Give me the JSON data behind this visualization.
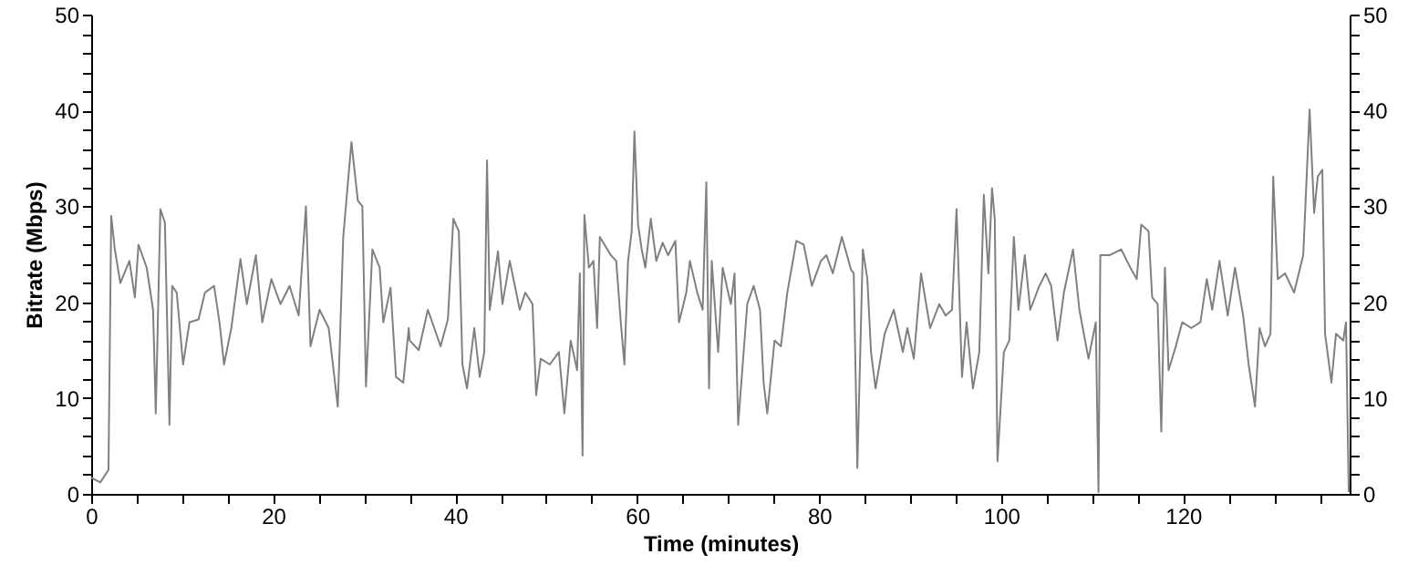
{
  "chart_data": {
    "type": "line",
    "xlabel": "Time (minutes)",
    "ylabel": "Bitrate (Mbps)",
    "xlim": [
      0,
      138.3
    ],
    "ylim": [
      0,
      50
    ],
    "y2lim": [
      0,
      50
    ],
    "xticks": [
      0,
      {
        "value": 5,
        "label": null
      },
      {
        "value": 10,
        "label": null
      },
      {
        "value": 15,
        "label": null
      },
      20,
      {
        "value": 25,
        "label": null
      },
      {
        "value": 30,
        "label": null
      },
      {
        "value": 35,
        "label": null
      },
      40,
      {
        "value": 45,
        "label": null
      },
      {
        "value": 50,
        "label": null
      },
      {
        "value": 55,
        "label": null
      },
      60,
      {
        "value": 65,
        "label": null
      },
      {
        "value": 70,
        "label": null
      },
      {
        "value": 75,
        "label": null
      },
      80,
      {
        "value": 85,
        "label": null
      },
      {
        "value": 90,
        "label": null
      },
      {
        "value": 95,
        "label": null
      },
      100,
      {
        "value": 105,
        "label": null
      },
      {
        "value": 110,
        "label": null
      },
      {
        "value": 115,
        "label": null
      },
      120,
      {
        "value": 125,
        "label": null
      },
      {
        "value": 130,
        "label": null
      },
      {
        "value": 135,
        "label": null
      }
    ],
    "yticks": [
      0,
      {
        "value": 2,
        "label": null
      },
      {
        "value": 4,
        "label": null
      },
      {
        "value": 6,
        "label": null
      },
      {
        "value": 8,
        "label": null
      },
      10,
      {
        "value": 12,
        "label": null
      },
      {
        "value": 14,
        "label": null
      },
      {
        "value": 16,
        "label": null
      },
      {
        "value": 18,
        "label": null
      },
      20,
      {
        "value": 22,
        "label": null
      },
      {
        "value": 24,
        "label": null
      },
      {
        "value": 26,
        "label": null
      },
      {
        "value": 28,
        "label": null
      },
      30,
      {
        "value": 32,
        "label": null
      },
      {
        "value": 34,
        "label": null
      },
      {
        "value": 36,
        "label": null
      },
      {
        "value": 38,
        "label": null
      },
      40,
      {
        "value": 42,
        "label": null
      },
      {
        "value": 44,
        "label": null
      },
      {
        "value": 46,
        "label": null
      },
      {
        "value": 48,
        "label": null
      },
      50
    ],
    "y2ticks": [
      0,
      {
        "value": 2,
        "label": null
      },
      {
        "value": 4,
        "label": null
      },
      {
        "value": 6,
        "label": null
      },
      {
        "value": 8,
        "label": null
      },
      10,
      {
        "value": 12,
        "label": null
      },
      {
        "value": 14,
        "label": null
      },
      {
        "value": 16,
        "label": null
      },
      {
        "value": 18,
        "label": null
      },
      20,
      {
        "value": 22,
        "label": null
      },
      {
        "value": 24,
        "label": null
      },
      {
        "value": 26,
        "label": null
      },
      {
        "value": 28,
        "label": null
      },
      30,
      {
        "value": 32,
        "label": null
      },
      {
        "value": 34,
        "label": null
      },
      {
        "value": 36,
        "label": null
      },
      {
        "value": 38,
        "label": null
      },
      40,
      {
        "value": 42,
        "label": null
      },
      {
        "value": 44,
        "label": null
      },
      {
        "value": 46,
        "label": null
      },
      {
        "value": 48,
        "label": null
      },
      50
    ],
    "marker": "none",
    "line_style": "solid",
    "series": [
      {
        "color": "#808080",
        "x": [
          0,
          1.0,
          1.9,
          2.2,
          2.6,
          3.2,
          4.2,
          4.8,
          5.2,
          6.1,
          6.8,
          7.1,
          7.6,
          8.1,
          8.6,
          8.9,
          9.4,
          10.1,
          10.8,
          11.8,
          12.5,
          13.5,
          14.1,
          14.6,
          15.4,
          16.4,
          17.1,
          18.1,
          18.8,
          19.8,
          20.8,
          21.8,
          22.8,
          23.6,
          24.1,
          25.1,
          26.1,
          27.1,
          27.7,
          28.6,
          29.3,
          29.8,
          30.2,
          30.9,
          31.7,
          32.1,
          32.9,
          33.5,
          34.3,
          34.9,
          35.0,
          36.0,
          37.0,
          38.4,
          39.2,
          39.8,
          40.4,
          40.8,
          41.3,
          42.1,
          42.7,
          43.2,
          43.5,
          43.8,
          44.7,
          45.2,
          46.0,
          47.1,
          47.7,
          48.5,
          48.9,
          49.4,
          50.4,
          51.4,
          52.0,
          52.7,
          53.4,
          53.7,
          54.0,
          54.2,
          54.7,
          55.2,
          55.6,
          55.9,
          57.1,
          57.7,
          58.2,
          58.6,
          59.0,
          59.4,
          59.7,
          60.1,
          60.5,
          60.9,
          61.5,
          62.1,
          62.8,
          63.4,
          64.2,
          64.6,
          65.4,
          65.8,
          66.6,
          67.2,
          67.6,
          67.9,
          68.2,
          68.9,
          69.4,
          70.0,
          70.3,
          70.7,
          71.1,
          72.1,
          72.8,
          73.5,
          73.9,
          74.3,
          75.1,
          75.8,
          76.5,
          77.5,
          78.3,
          79.2,
          80.2,
          80.8,
          81.5,
          82.5,
          83.5,
          83.8,
          84.2,
          84.8,
          85.3,
          85.7,
          86.2,
          87.2,
          88.2,
          89.2,
          89.7,
          90.4,
          91.2,
          92.2,
          93.2,
          93.9,
          94.6,
          95.1,
          95.7,
          96.2,
          96.9,
          97.6,
          98.1,
          98.6,
          99.0,
          99.3,
          99.6,
          100.3,
          100.9,
          101.4,
          101.9,
          102.6,
          103.2,
          104.2,
          104.9,
          105.5,
          106.2,
          106.9,
          107.9,
          108.6,
          109.6,
          110.4,
          110.7,
          110.9,
          111.9,
          113.2,
          114.2,
          114.9,
          115.4,
          116.2,
          116.6,
          117.2,
          117.6,
          118.0,
          118.4,
          119.2,
          119.9,
          120.9,
          121.9,
          122.6,
          123.2,
          124.0,
          124.9,
          125.7,
          126.6,
          127.2,
          127.9,
          128.4,
          129.0,
          129.6,
          129.9,
          130.4,
          131.2,
          132.2,
          133.2,
          133.9,
          134.4,
          134.8,
          135.3,
          135.6,
          136.3,
          136.8,
          137.6,
          137.9,
          138.2
        ],
        "values": [
          1.7,
          1.2,
          2.5,
          29,
          25.5,
          22,
          24.3,
          20.5,
          26,
          23.6,
          19.2,
          8.4,
          29.7,
          28.3,
          7.2,
          21.7,
          21,
          13.5,
          17.9,
          18.2,
          21,
          21.7,
          17.9,
          13.5,
          17.3,
          24.5,
          19.8,
          24.9,
          17.9,
          22.4,
          19.8,
          21.7,
          18.6,
          30,
          15.4,
          19.2,
          17.3,
          9.1,
          26.8,
          36.7,
          30.6,
          30,
          11.2,
          25.5,
          23.6,
          17.9,
          21.5,
          12.2,
          11.6,
          17.3,
          16,
          15,
          19.2,
          15.4,
          18.2,
          28.7,
          27.4,
          13.5,
          11,
          17.3,
          12.2,
          14.8,
          34.8,
          19.2,
          25.3,
          19.8,
          24.3,
          19.2,
          21,
          19.8,
          10.3,
          14.1,
          13.5,
          14.8,
          8.4,
          16,
          12.9,
          23,
          4,
          29.1,
          23.6,
          24.3,
          17.3,
          26.8,
          24.9,
          24.3,
          17.9,
          13.5,
          24.3,
          27.4,
          37.8,
          28.1,
          25.5,
          23.6,
          28.7,
          24.3,
          26.2,
          24.9,
          26.4,
          17.9,
          21,
          24.3,
          21,
          19.2,
          32.5,
          11,
          24.3,
          14.8,
          23.6,
          21,
          19.8,
          23,
          7.2,
          19.8,
          21.7,
          19.2,
          11.6,
          8.4,
          16,
          15.4,
          21,
          26.4,
          26,
          21.7,
          24.3,
          24.9,
          23,
          26.8,
          23.4,
          23,
          2.7,
          25.5,
          22.4,
          14.8,
          11,
          16.7,
          19.2,
          14.8,
          17.3,
          14.1,
          23,
          17.3,
          19.8,
          18.6,
          19.2,
          29.7,
          12.2,
          17.9,
          11,
          14.8,
          31.2,
          23,
          31.9,
          28.7,
          3.4,
          14.8,
          16,
          26.8,
          19.2,
          24.9,
          19.2,
          21.7,
          23,
          21.7,
          16,
          21,
          25.5,
          19.2,
          14.1,
          17.9,
          0.2,
          24.9,
          24.9,
          25.5,
          23.6,
          22.4,
          28.1,
          27.4,
          20.5,
          19.8,
          6.5,
          23.6,
          12.9,
          15.4,
          17.9,
          17.3,
          17.9,
          22.4,
          19.2,
          24.3,
          18.6,
          23.6,
          18.6,
          13.5,
          9.1,
          17.3,
          15.4,
          16.7,
          33.1,
          22.4,
          23,
          21,
          24.9,
          40.1,
          29.3,
          33.1,
          33.8,
          16.7,
          11.6,
          16.7,
          16,
          17.9,
          0.2
        ]
      }
    ]
  }
}
